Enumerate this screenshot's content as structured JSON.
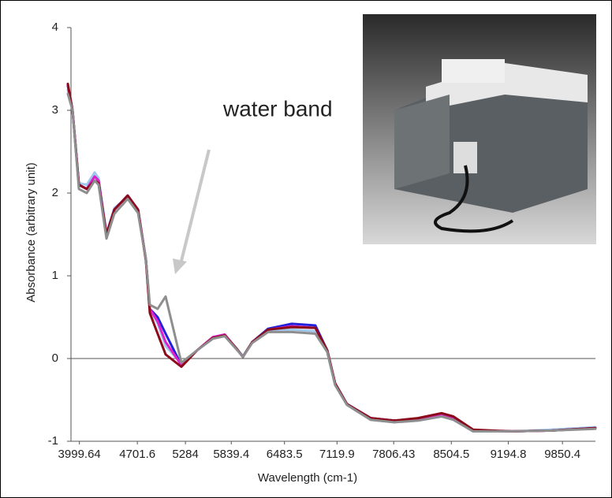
{
  "chart_data": {
    "type": "line",
    "annotation": "water band",
    "x_label": "Wavelength (cm-1)",
    "y_label": "Absorbance (arbitrary unit)",
    "x": [
      3860,
      3917,
      3993,
      4089,
      4184,
      4232,
      4328,
      4423,
      4585,
      4710,
      4805,
      4853,
      4948,
      5044,
      5235,
      5426,
      5617,
      5760,
      5903,
      5980,
      6094,
      6285,
      6572,
      6858,
      7001,
      7097,
      7240,
      7527,
      7813,
      8100,
      8386,
      8529,
      8768,
      9246,
      9723,
      10249
    ],
    "series": [
      {
        "color": "#9fc8ec",
        "values": [
          3.25,
          3.0,
          2.12,
          2.1,
          2.25,
          2.18,
          1.52,
          1.82,
          1.95,
          1.78,
          1.2,
          0.6,
          0.42,
          0.15,
          -0.06,
          0.1,
          0.25,
          0.27,
          0.12,
          0.03,
          0.2,
          0.33,
          0.35,
          0.33,
          0.08,
          -0.32,
          -0.56,
          -0.74,
          -0.77,
          -0.75,
          -0.7,
          -0.74,
          -0.88,
          -0.88,
          -0.86,
          -0.83
        ]
      },
      {
        "color": "#2222dd",
        "values": [
          3.3,
          3.0,
          2.1,
          2.05,
          2.2,
          2.15,
          1.5,
          1.8,
          1.97,
          1.8,
          1.2,
          0.6,
          0.5,
          0.3,
          -0.08,
          0.1,
          0.25,
          0.28,
          0.12,
          0.02,
          0.2,
          0.36,
          0.42,
          0.4,
          0.1,
          -0.3,
          -0.55,
          -0.72,
          -0.75,
          -0.73,
          -0.68,
          -0.72,
          -0.87,
          -0.88,
          -0.87,
          -0.84
        ]
      },
      {
        "color": "#e020c8",
        "values": [
          3.3,
          3.0,
          2.1,
          2.05,
          2.2,
          2.15,
          1.5,
          1.8,
          1.97,
          1.8,
          1.2,
          0.6,
          0.45,
          0.2,
          -0.08,
          0.1,
          0.26,
          0.29,
          0.12,
          0.02,
          0.2,
          0.35,
          0.39,
          0.37,
          0.1,
          -0.3,
          -0.55,
          -0.72,
          -0.75,
          -0.73,
          -0.68,
          -0.72,
          -0.87,
          -0.88,
          -0.87,
          -0.84
        ]
      },
      {
        "color": "#8b0a1a",
        "values": [
          3.32,
          3.0,
          2.1,
          2.05,
          2.15,
          2.12,
          1.5,
          1.8,
          1.97,
          1.8,
          1.18,
          0.55,
          0.3,
          0.05,
          -0.1,
          0.1,
          0.25,
          0.28,
          0.12,
          0.02,
          0.2,
          0.35,
          0.38,
          0.37,
          0.1,
          -0.3,
          -0.55,
          -0.72,
          -0.75,
          -0.72,
          -0.66,
          -0.7,
          -0.86,
          -0.88,
          -0.87,
          -0.84
        ]
      },
      {
        "color": "#8e8e8e",
        "values": [
          3.2,
          3.0,
          2.05,
          2.0,
          2.15,
          2.1,
          1.45,
          1.75,
          1.93,
          1.76,
          1.2,
          0.65,
          0.6,
          0.75,
          -0.05,
          0.1,
          0.24,
          0.27,
          0.11,
          0.02,
          0.19,
          0.32,
          0.32,
          0.3,
          0.08,
          -0.32,
          -0.56,
          -0.74,
          -0.77,
          -0.75,
          -0.7,
          -0.74,
          -0.88,
          -0.88,
          -0.87,
          -0.85
        ]
      }
    ],
    "xlim": [
      3850,
      10250
    ],
    "ylim": [
      -1,
      4
    ],
    "xticks": [
      3999.64,
      4701.6,
      5284,
      5839.4,
      6483.5,
      7119.9,
      7806.43,
      8504.5,
      9194.8,
      9850.4
    ],
    "yticks": [
      -1,
      0,
      1,
      2,
      3,
      4
    ]
  }
}
